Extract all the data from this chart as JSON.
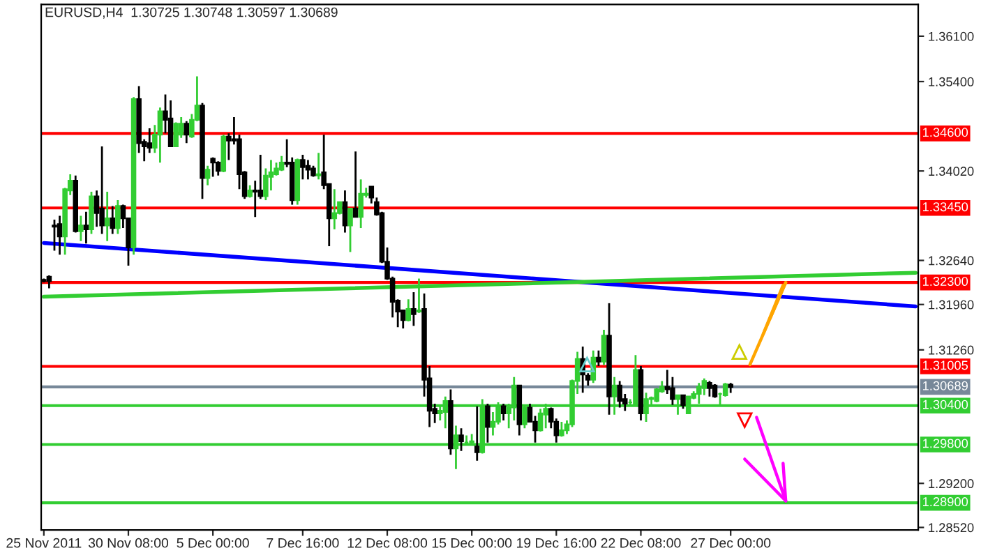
{
  "chart_data": {
    "type": "candlestick",
    "title": "EURUSD,H4  1.30725 1.30748 1.30597 1.30689",
    "categories": [
      "25 Nov 2011",
      null,
      null,
      null,
      null,
      null,
      null,
      null,
      null,
      null,
      null,
      null,
      null,
      null,
      null,
      null,
      "30 Nov 08:00",
      null,
      null,
      null,
      null,
      null,
      null,
      null,
      null,
      null,
      null,
      null,
      null,
      null,
      null,
      null,
      "5 Dec 00:00",
      null,
      null,
      null,
      null,
      null,
      null,
      null,
      null,
      null,
      null,
      null,
      null,
      null,
      null,
      null,
      null,
      "7 Dec 16:00",
      null,
      null,
      null,
      null,
      null,
      null,
      null,
      null,
      null,
      null,
      null,
      null,
      null,
      null,
      null,
      "12 Dec 08:00",
      null,
      null,
      null,
      null,
      null,
      null,
      null,
      null,
      null,
      null,
      null,
      null,
      null,
      null,
      null,
      "15 Dec 00:00",
      null,
      null,
      null,
      null,
      null,
      null,
      null,
      null,
      null,
      null,
      null,
      null,
      null,
      null,
      null,
      "19 Dec 16:00",
      null,
      null,
      null,
      null,
      null,
      null,
      null,
      null,
      null,
      null,
      null,
      null,
      null,
      null,
      null,
      "22 Dec 08:00",
      null,
      null,
      null,
      null,
      null,
      null,
      null,
      null,
      null,
      null,
      null,
      null,
      null,
      null,
      null,
      null,
      "27 Dec 00:00",
      null,
      null,
      null,
      null,
      null,
      null,
      null,
      null,
      null,
      null,
      null,
      null,
      null,
      null,
      null,
      null,
      null,
      null,
      null,
      null,
      null,
      null,
      null,
      null,
      null,
      null,
      null,
      null,
      null,
      null,
      null,
      null,
      null,
      null,
      null
    ],
    "ohlc": [
      [
        1.3234,
        1.3236,
        1.323,
        1.3232
      ],
      [
        1.3239,
        1.3241,
        1.3221,
        1.3232
      ],
      [
        1.3318,
        1.3327,
        1.3279,
        1.3316
      ],
      [
        1.332,
        1.3333,
        1.3273,
        1.3301
      ],
      [
        1.3301,
        1.3376,
        1.3273,
        1.3374
      ],
      [
        1.3372,
        1.3397,
        1.3365,
        1.3387
      ],
      [
        1.3387,
        1.3395,
        1.3307,
        1.3309
      ],
      [
        1.3309,
        1.3333,
        1.3294,
        1.3318
      ],
      [
        1.3318,
        1.3339,
        1.329,
        1.3312
      ],
      [
        1.3312,
        1.337,
        1.3305,
        1.3363
      ],
      [
        1.3363,
        1.3372,
        1.3316,
        1.3337
      ],
      [
        1.3344,
        1.344,
        1.3305,
        1.3318
      ],
      [
        1.3318,
        1.337,
        1.3294,
        1.3329
      ],
      [
        1.3329,
        1.3348,
        1.3305,
        1.3314
      ],
      [
        1.3314,
        1.3357,
        1.3305,
        1.3348
      ],
      [
        1.3348,
        1.335,
        1.3314,
        1.3329
      ],
      [
        1.3329,
        1.3329,
        1.3256,
        1.3284
      ],
      [
        1.3284,
        1.3516,
        1.3273,
        1.3513
      ],
      [
        1.3513,
        1.3533,
        1.343,
        1.3445
      ],
      [
        1.3447,
        1.3451,
        1.3417,
        1.344
      ],
      [
        1.3445,
        1.3468,
        1.343,
        1.3438
      ],
      [
        1.3438,
        1.3473,
        1.343,
        1.3458
      ],
      [
        1.3458,
        1.35,
        1.3415,
        1.3494
      ],
      [
        1.3494,
        1.352,
        1.346,
        1.3481
      ],
      [
        1.3483,
        1.3511,
        1.344,
        1.344
      ],
      [
        1.344,
        1.3477,
        1.344,
        1.3475
      ],
      [
        1.3458,
        1.3485,
        1.3453,
        1.3475
      ],
      [
        1.3475,
        1.3479,
        1.3445,
        1.3458
      ],
      [
        1.3455,
        1.349,
        1.3453,
        1.3481
      ],
      [
        1.3481,
        1.3548,
        1.3479,
        1.3503
      ],
      [
        1.3503,
        1.3507,
        1.3359,
        1.3391
      ],
      [
        1.3391,
        1.341,
        1.338,
        1.3404
      ],
      [
        1.3421,
        1.3423,
        1.3393,
        1.3415
      ],
      [
        1.3415,
        1.3417,
        1.3395,
        1.3402
      ],
      [
        1.3402,
        1.3458,
        1.34,
        1.3455
      ],
      [
        1.3455,
        1.346,
        1.3419,
        1.3449
      ],
      [
        1.3451,
        1.3485,
        1.3443,
        1.3449
      ],
      [
        1.3451,
        1.3458,
        1.3374,
        1.3397
      ],
      [
        1.34,
        1.3402,
        1.3359,
        1.3363
      ],
      [
        1.3363,
        1.338,
        1.3361,
        1.3372
      ],
      [
        1.3372,
        1.3387,
        1.3331,
        1.337
      ],
      [
        1.3372,
        1.3427,
        1.3359,
        1.3363
      ],
      [
        1.3363,
        1.3406,
        1.3357,
        1.3395
      ],
      [
        1.3393,
        1.3419,
        1.3372,
        1.34
      ],
      [
        1.3397,
        1.3415,
        1.3395,
        1.3406
      ],
      [
        1.3404,
        1.3425,
        1.3402,
        1.3415
      ],
      [
        1.3415,
        1.3451,
        1.3408,
        1.3413
      ],
      [
        1.3415,
        1.3423,
        1.335,
        1.3357
      ],
      [
        1.3357,
        1.3421,
        1.335,
        1.3419
      ],
      [
        1.3419,
        1.3427,
        1.3389,
        1.3408
      ],
      [
        1.341,
        1.3419,
        1.3389,
        1.3404
      ],
      [
        1.3406,
        1.341,
        1.3393,
        1.3395
      ],
      [
        1.3395,
        1.343,
        1.3389,
        1.3397
      ],
      [
        1.34,
        1.3458,
        1.3374,
        1.338
      ],
      [
        1.3382,
        1.3382,
        1.3286,
        1.3329
      ],
      [
        1.3329,
        1.3374,
        1.3312,
        1.3337
      ],
      [
        1.3337,
        1.3354,
        1.3335,
        1.3354
      ],
      [
        1.3354,
        1.3372,
        1.3307,
        1.3318
      ],
      [
        1.3318,
        1.3344,
        1.3277,
        1.3344
      ],
      [
        1.3344,
        1.3432,
        1.3331,
        1.3331
      ],
      [
        1.3331,
        1.3389,
        1.3314,
        1.3367
      ],
      [
        1.3365,
        1.3376,
        1.3361,
        1.3367
      ],
      [
        1.3378,
        1.3378,
        1.3352,
        1.3361
      ],
      [
        1.3354,
        1.3361,
        1.3333,
        1.3335
      ],
      [
        1.3337,
        1.3339,
        1.326,
        1.3262
      ],
      [
        1.3262,
        1.3284,
        1.3234,
        1.3236
      ],
      [
        1.3236,
        1.3239,
        1.3176,
        1.32
      ],
      [
        1.3202,
        1.3204,
        1.3161,
        1.3185
      ],
      [
        1.3187,
        1.3187,
        1.3159,
        1.3172
      ],
      [
        1.3172,
        1.3204,
        1.317,
        1.3189
      ],
      [
        1.3189,
        1.3215,
        1.3163,
        1.3181
      ],
      [
        1.3185,
        1.3236,
        1.3183,
        1.3187
      ],
      [
        1.3189,
        1.3213,
        1.3054,
        1.308
      ],
      [
        1.3082,
        1.3101,
        1.3007,
        1.3032
      ],
      [
        1.3035,
        1.3043,
        1.3013,
        1.3028
      ],
      [
        1.3028,
        1.3039,
        1.3017,
        1.3032
      ],
      [
        1.303,
        1.3054,
        1.3005,
        1.3047
      ],
      [
        1.3047,
        1.3065,
        1.2964,
        1.2974
      ],
      [
        1.2974,
        1.3009,
        1.2942,
        1.2994
      ],
      [
        1.2994,
        1.3005,
        1.297,
        1.2985
      ],
      [
        1.2983,
        1.2994,
        1.2979,
        1.2983
      ],
      [
        1.2983,
        1.2996,
        1.2979,
        1.2985
      ],
      [
        1.2977,
        1.3039,
        1.2955,
        1.2968
      ],
      [
        1.2968,
        1.305,
        1.2966,
        1.3039
      ],
      [
        1.3039,
        1.3043,
        1.2983,
        1.3007
      ],
      [
        1.3007,
        1.303,
        1.2994,
        1.3015
      ],
      [
        1.3015,
        1.3045,
        1.3011,
        1.3039
      ],
      [
        1.3039,
        1.3043,
        1.3017,
        1.3028
      ],
      [
        1.3028,
        1.3043,
        1.3005,
        1.3037
      ],
      [
        1.3037,
        1.3084,
        1.3017,
        1.3071
      ],
      [
        1.3071,
        1.3071,
        1.2994,
        1.3011
      ],
      [
        1.3011,
        1.3041,
        1.3005,
        1.3037
      ],
      [
        1.3037,
        1.3043,
        1.3015,
        1.3015
      ],
      [
        1.3015,
        1.3024,
        1.2983,
        1.3002
      ],
      [
        1.3002,
        1.3035,
        1.3,
        1.3028
      ],
      [
        1.3026,
        1.3043,
        1.3005,
        1.3035
      ],
      [
        1.3035,
        1.3037,
        1.3005,
        1.3015
      ],
      [
        1.3015,
        1.302,
        1.2983,
        1.2994
      ],
      [
        1.2994,
        1.3015,
        1.2992,
        1.3002
      ],
      [
        1.3002,
        1.3017,
        1.2996,
        1.3011
      ],
      [
        1.3011,
        1.308,
        1.3007,
        1.3078
      ],
      [
        1.3078,
        1.3123,
        1.3058,
        1.3112
      ],
      [
        1.3112,
        1.3131,
        1.306,
        1.3088
      ],
      [
        1.3086,
        1.309,
        1.3071,
        1.308
      ],
      [
        1.308,
        1.3125,
        1.3075,
        1.3114
      ],
      [
        1.3114,
        1.3125,
        1.3101,
        1.3108
      ],
      [
        1.3108,
        1.3157,
        1.3103,
        1.3148
      ],
      [
        1.3148,
        1.3198,
        1.3026,
        1.3054
      ],
      [
        1.3054,
        1.3084,
        1.3026,
        1.3071
      ],
      [
        1.3071,
        1.3078,
        1.3037,
        1.3047
      ],
      [
        1.305,
        1.3058,
        1.3032,
        1.3043
      ],
      [
        1.3045,
        1.305,
        1.3039,
        1.3045
      ],
      [
        1.3043,
        1.3118,
        1.3039,
        1.3095
      ],
      [
        1.3095,
        1.3101,
        1.3017,
        1.3028
      ],
      [
        1.3028,
        1.306,
        1.3015,
        1.305
      ],
      [
        1.305,
        1.3054,
        1.3041,
        1.3052
      ],
      [
        1.3047,
        1.3067,
        1.3045,
        1.3065
      ],
      [
        1.3062,
        1.3078,
        1.306,
        1.3069
      ],
      [
        1.3069,
        1.3095,
        1.3058,
        1.3065
      ],
      [
        1.3067,
        1.3084,
        1.3041,
        1.305
      ],
      [
        1.305,
        1.3056,
        1.3026,
        1.3056
      ],
      [
        1.3056,
        1.3056,
        1.3035,
        1.3041
      ],
      [
        1.3028,
        1.3054,
        1.3028,
        1.3054
      ],
      [
        1.3052,
        1.3062,
        1.305,
        1.3058
      ],
      [
        1.3058,
        1.3075,
        1.3043,
        1.3069
      ],
      [
        1.3067,
        1.3082,
        1.3056,
        1.3078
      ],
      [
        1.3075,
        1.3078,
        1.3054,
        1.3067
      ],
      [
        1.3071,
        1.3073,
        1.3052,
        1.3054
      ],
      [
        1.3058,
        1.306,
        1.3041,
        1.3058
      ],
      [
        1.3056,
        1.3075,
        1.3054,
        1.3073
      ],
      [
        1.30725,
        1.30748,
        1.30597,
        1.30689
      ],
      null,
      null,
      null,
      null,
      null,
      null,
      null,
      null,
      null,
      null,
      null,
      null,
      null,
      null,
      null,
      null,
      null,
      null,
      null,
      null,
      null,
      null,
      null,
      null,
      null,
      null,
      null,
      null,
      null,
      null,
      null,
      null,
      null,
      null,
      null
    ],
    "series": [
      {
        "type": "line",
        "color": "#0000ff",
        "values": [
          1.3291,
          null,
          null,
          null,
          null,
          null,
          null,
          null,
          null,
          null,
          null,
          null,
          null,
          null,
          null,
          null,
          null,
          null,
          null,
          null,
          null,
          null,
          null,
          null,
          null,
          null,
          null,
          null,
          null,
          null,
          null,
          null,
          null,
          null,
          null,
          null,
          null,
          null,
          null,
          null,
          null,
          null,
          null,
          null,
          null,
          null,
          null,
          null,
          null,
          null,
          null,
          null,
          null,
          null,
          null,
          null,
          null,
          null,
          null,
          null,
          null,
          null,
          null,
          null,
          null,
          null,
          null,
          null,
          null,
          null,
          null,
          null,
          null,
          null,
          null,
          null,
          null,
          null,
          null,
          null,
          null,
          null,
          null,
          null,
          null,
          null,
          null,
          null,
          null,
          null,
          null,
          null,
          null,
          null,
          null,
          null,
          null,
          null,
          null,
          null,
          null,
          null,
          null,
          null,
          null,
          null,
          null,
          null,
          null,
          null,
          null,
          null,
          null,
          null,
          null,
          null,
          null,
          null,
          null,
          null,
          null,
          null,
          null,
          null,
          null,
          null,
          null,
          null,
          null,
          null,
          null,
          null,
          null,
          null,
          null,
          null,
          null,
          null,
          null,
          null,
          null,
          null,
          null,
          null,
          null,
          null,
          null,
          null,
          null,
          null,
          null,
          null,
          null,
          null,
          null,
          null,
          null,
          null,
          null,
          null,
          null,
          null,
          null,
          null,
          null,
          1.3193
        ]
      },
      {
        "type": "line",
        "color": "#32cd32",
        "values": [
          1.3208,
          null,
          null,
          null,
          null,
          null,
          null,
          null,
          null,
          null,
          null,
          null,
          null,
          null,
          null,
          null,
          null,
          null,
          null,
          null,
          null,
          null,
          null,
          null,
          null,
          null,
          null,
          null,
          null,
          null,
          null,
          null,
          null,
          null,
          null,
          null,
          null,
          null,
          null,
          null,
          null,
          null,
          null,
          null,
          null,
          null,
          null,
          null,
          null,
          null,
          null,
          null,
          null,
          null,
          null,
          null,
          null,
          null,
          null,
          null,
          null,
          null,
          null,
          null,
          null,
          null,
          null,
          null,
          null,
          null,
          null,
          null,
          null,
          null,
          null,
          null,
          null,
          null,
          null,
          null,
          null,
          null,
          null,
          null,
          null,
          null,
          null,
          null,
          null,
          null,
          null,
          null,
          null,
          null,
          null,
          null,
          null,
          null,
          null,
          null,
          null,
          null,
          null,
          null,
          null,
          null,
          null,
          null,
          null,
          null,
          null,
          null,
          null,
          null,
          null,
          null,
          null,
          null,
          null,
          null,
          null,
          null,
          null,
          null,
          null,
          null,
          null,
          null,
          null,
          null,
          null,
          null,
          null,
          null,
          null,
          null,
          null,
          null,
          null,
          null,
          null,
          null,
          null,
          null,
          null,
          null,
          null,
          null,
          null,
          null,
          null,
          null,
          null,
          null,
          null,
          null,
          null,
          null,
          null,
          null,
          null,
          null,
          null,
          null,
          null,
          1.3245
        ]
      }
    ],
    "ylim": [
      1.2848,
      1.3659
    ],
    "yticks": [
      {
        "value": 1.361,
        "label": "1.36100"
      },
      {
        "value": 1.354,
        "label": "1.35400"
      },
      {
        "value": 1.3402,
        "label": "1.34020"
      },
      {
        "value": 1.3264,
        "label": "1.32640"
      },
      {
        "value": 1.3196,
        "label": "1.31960"
      },
      {
        "value": 1.3126,
        "label": "1.31260"
      },
      {
        "value": 1.292,
        "label": "1.29200"
      },
      {
        "value": 1.2852,
        "label": "1.28520"
      }
    ],
    "ref_lines": [
      {
        "axis": "y",
        "value": 1.346,
        "label": "1.34600",
        "color": "#ff0000"
      },
      {
        "axis": "y",
        "value": 1.3345,
        "label": "1.33450",
        "color": "#ff0000"
      },
      {
        "axis": "y",
        "value": 1.323,
        "label": "1.32300",
        "color": "#ff0000"
      },
      {
        "axis": "y",
        "value": 1.31005,
        "label": "1.31005",
        "color": "#ff0000"
      },
      {
        "axis": "y",
        "value": 1.30689,
        "label": "1.30689",
        "color": "#778899"
      },
      {
        "axis": "y",
        "value": 1.304,
        "label": "1.30400",
        "color": "#32cd32"
      },
      {
        "axis": "y",
        "value": 1.298,
        "label": "1.29800",
        "color": "#32cd32"
      },
      {
        "axis": "y",
        "value": 1.289,
        "label": "1.28900",
        "color": "#32cd32"
      }
    ]
  }
}
